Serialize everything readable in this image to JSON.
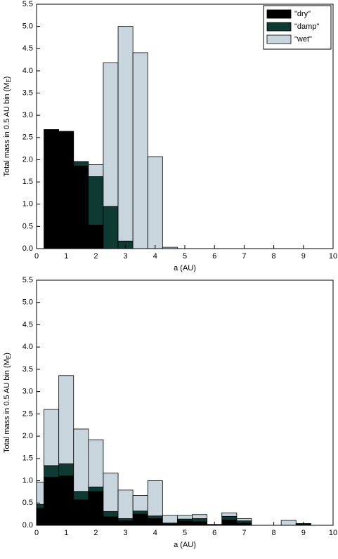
{
  "chart_data": [
    {
      "type": "histogram",
      "stacked": true,
      "xlabel": "a (AU)",
      "ylabel": "Total mass in 0.5 AU bin (M",
      "ylabel_subscript": "E",
      "ylabel_suffix": ")",
      "legend": "upper right",
      "bins": [
        0.25,
        0.75,
        1.25,
        1.75,
        2.25,
        2.75,
        3.25,
        3.75,
        4.25,
        4.75
      ],
      "series": [
        {
          "name": "\"dry\"",
          "color": "#000000",
          "values": [
            2.68,
            2.64,
            1.86,
            0.53,
            0,
            0,
            0,
            0,
            0
          ]
        },
        {
          "name": "\"damp\"",
          "color": "#0f3a34",
          "values": [
            0,
            0,
            0.1,
            1.09,
            0.95,
            0.17,
            0,
            0,
            0
          ]
        },
        {
          "name": "\"wet\"",
          "color": "#c8d5dd",
          "values": [
            0,
            0,
            0,
            0.27,
            3.23,
            4.83,
            4.41,
            2.07,
            0.03
          ]
        }
      ],
      "xlim": [
        0,
        10
      ],
      "xticks": [
        0,
        1,
        2,
        3,
        4,
        5,
        6,
        7,
        8,
        9,
        10
      ],
      "ylim": [
        0,
        5.5
      ],
      "yticks": [
        {
          "value": 0,
          "label": "0.0"
        },
        {
          "value": 0.5,
          "label": "0.5"
        },
        {
          "value": 1,
          "label": "1.0"
        },
        {
          "value": 1.5,
          "label": "1.5"
        },
        {
          "value": 2,
          "label": "2.0"
        },
        {
          "value": 2.5,
          "label": "2.5"
        },
        {
          "value": 3,
          "label": "3.0"
        },
        {
          "value": 3.5,
          "label": "3.5"
        },
        {
          "value": 4,
          "label": "4.0"
        },
        {
          "value": 4.5,
          "label": "4.5"
        },
        {
          "value": 5,
          "label": "5.0"
        },
        {
          "value": 5.5,
          "label": "5.5"
        }
      ]
    },
    {
      "type": "histogram",
      "stacked": true,
      "xlabel": "a (AU)",
      "ylabel": "Total mass in 0.5 AU bin (M",
      "ylabel_subscript": "E",
      "ylabel_suffix": ")",
      "bins": [
        0,
        0.25,
        0.75,
        1.25,
        1.75,
        2.25,
        2.75,
        3.25,
        3.75,
        4.25,
        4.75,
        5.25,
        5.75,
        6.25,
        6.75,
        7.25,
        7.75,
        8.25,
        8.75,
        9.25
      ],
      "series": [
        {
          "color": "#000000",
          "values": [
            0.38,
            1.08,
            1.11,
            0.57,
            0.76,
            0.19,
            0.1,
            0.25,
            0.15,
            0.03,
            0.1,
            0.08,
            0,
            0.12,
            0.05,
            0,
            0,
            0,
            0.02
          ]
        },
        {
          "color": "#0f3a34",
          "values": [
            0.09,
            0.26,
            0.27,
            0.19,
            0.1,
            0.12,
            0.05,
            0.07,
            0.06,
            0.02,
            0.04,
            0.07,
            0.01,
            0.08,
            0.05,
            0,
            0,
            0,
            0.02
          ]
        },
        {
          "color": "#c8d5dd",
          "values": [
            0.5,
            1.26,
            1.98,
            1.4,
            1.06,
            0.86,
            0.64,
            0.35,
            0.79,
            0.17,
            0.08,
            0.09,
            0.01,
            0.08,
            0.05,
            0,
            0,
            0.11,
            0
          ]
        }
      ],
      "xlim": [
        0,
        10
      ],
      "xticks": [
        0,
        1,
        2,
        3,
        4,
        5,
        6,
        7,
        8,
        9,
        10
      ],
      "ylim": [
        0,
        5.5
      ],
      "yticks": [
        {
          "value": 0,
          "label": "0.0"
        },
        {
          "value": 0.5,
          "label": "0.5"
        },
        {
          "value": 1,
          "label": "1.0"
        },
        {
          "value": 1.5,
          "label": "1.5"
        },
        {
          "value": 2,
          "label": "2.0"
        },
        {
          "value": 2.5,
          "label": "2.5"
        },
        {
          "value": 3,
          "label": "3.0"
        },
        {
          "value": 3.5,
          "label": "3.5"
        },
        {
          "value": 4,
          "label": "4.0"
        },
        {
          "value": 4.5,
          "label": "4.5"
        },
        {
          "value": 5,
          "label": "5.0"
        },
        {
          "value": 5.5,
          "label": "5.5"
        }
      ]
    }
  ]
}
